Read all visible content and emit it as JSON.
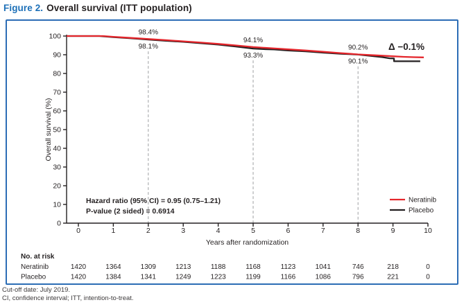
{
  "title": {
    "prefix": "Figure 2.",
    "text": "Overall survival (ITT population)"
  },
  "footnotes": {
    "line1": "Cut-off date: July 2019.",
    "line2": "CI, confidence interval; ITT, intention-to-treat."
  },
  "colors": {
    "accent_blue": "#2b6cb5",
    "title_blue": "#1d70b8",
    "neratinib_red": "#e4262c",
    "placebo_black": "#231f20",
    "dashed_gray": "#9d9fa2",
    "axis_black": "#231f20"
  },
  "chart_data": {
    "type": "line",
    "subtype": "kaplan-meier",
    "xlabel": "Years after randomization",
    "ylabel": "Overall survival (%)",
    "xlim": [
      0,
      10
    ],
    "ylim": [
      0,
      100
    ],
    "xticks": [
      0,
      1,
      2,
      3,
      4,
      5,
      6,
      7,
      8,
      9,
      10
    ],
    "yticks": [
      0,
      10,
      20,
      30,
      40,
      50,
      60,
      70,
      80,
      90,
      100
    ],
    "grid": false,
    "legend_position": "bottom-right-inside",
    "series": [
      {
        "name": "Neratinib",
        "color": "#e4262c",
        "points": [
          [
            0,
            100
          ],
          [
            0.7,
            100
          ],
          [
            1.0,
            99.6
          ],
          [
            1.5,
            99.0
          ],
          [
            2.0,
            98.4
          ],
          [
            2.5,
            97.8
          ],
          [
            3.0,
            97.2
          ],
          [
            3.5,
            96.5
          ],
          [
            4.0,
            95.8
          ],
          [
            4.5,
            95.0
          ],
          [
            5.0,
            94.1
          ],
          [
            5.5,
            93.5
          ],
          [
            6.0,
            92.9
          ],
          [
            6.5,
            92.3
          ],
          [
            7.0,
            91.6
          ],
          [
            7.5,
            90.9
          ],
          [
            8.0,
            90.2
          ],
          [
            8.5,
            89.7
          ],
          [
            9.0,
            89.2
          ],
          [
            9.3,
            88.9
          ],
          [
            9.6,
            88.7
          ],
          [
            9.88,
            88.6
          ]
        ]
      },
      {
        "name": "Placebo",
        "color": "#231f20",
        "points": [
          [
            0,
            100
          ],
          [
            0.6,
            100
          ],
          [
            1.0,
            99.4
          ],
          [
            1.5,
            98.8
          ],
          [
            2.0,
            98.1
          ],
          [
            2.5,
            97.5
          ],
          [
            3.0,
            96.9
          ],
          [
            3.5,
            96.2
          ],
          [
            4.0,
            95.4
          ],
          [
            4.5,
            94.4
          ],
          [
            5.0,
            93.3
          ],
          [
            5.3,
            93.0
          ],
          [
            5.6,
            92.8
          ],
          [
            6.0,
            92.3
          ],
          [
            6.5,
            91.8
          ],
          [
            7.0,
            91.1
          ],
          [
            7.5,
            90.5
          ],
          [
            8.0,
            90.1
          ],
          [
            8.4,
            89.3
          ],
          [
            8.7,
            88.7
          ],
          [
            8.9,
            88.1
          ],
          [
            9.03,
            88.0
          ],
          [
            9.03,
            86.5
          ],
          [
            9.78,
            86.5
          ]
        ]
      }
    ],
    "annotations": [
      {
        "x": 2,
        "top_value": 98.4,
        "bottom_value": 98.1,
        "top_label": "98.4%",
        "bottom_label": "98.1%"
      },
      {
        "x": 5,
        "top_value": 94.1,
        "bottom_value": 93.3,
        "top_label": "94.1%",
        "bottom_label": "93.3%"
      },
      {
        "x": 8,
        "top_value": 90.2,
        "bottom_value": 90.1,
        "top_label": "90.2%",
        "bottom_label": "90.1%"
      }
    ],
    "delta_label": "Δ −0.1%",
    "stats_box": {
      "line1": "Hazard ratio (95% CI) = 0.95 (0.75–1.21)",
      "line2": "P-value (2 sided) = 0.6914"
    },
    "legend": [
      {
        "label": "Neratinib",
        "color": "#e4262c"
      },
      {
        "label": "Placebo",
        "color": "#231f20"
      }
    ],
    "at_risk": {
      "header": "No. at risk",
      "rows": [
        {
          "label": "Neratinib",
          "values": [
            1420,
            1364,
            1309,
            1213,
            1188,
            1168,
            1123,
            1041,
            746,
            218,
            0
          ]
        },
        {
          "label": "Placebo",
          "values": [
            1420,
            1384,
            1341,
            1249,
            1223,
            1199,
            1166,
            1086,
            796,
            221,
            0
          ]
        }
      ]
    }
  }
}
